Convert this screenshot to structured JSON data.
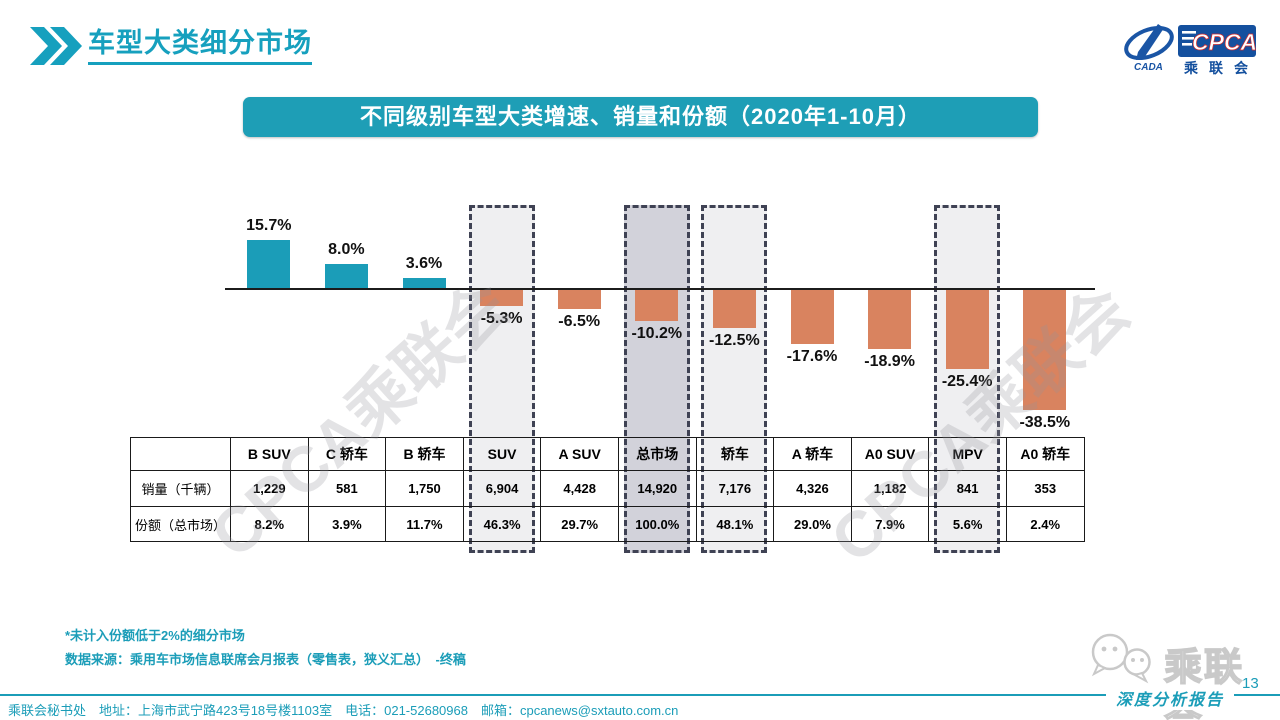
{
  "page": {
    "title": "车型大类细分市场",
    "page_number": "13"
  },
  "logo": {
    "cada_text": "CADA",
    "cpca_text": "CPCA",
    "cn_text": "乘联会"
  },
  "banner": {
    "text": "不同级别车型大类增速、销量和份额（2020年1-10月）"
  },
  "chart_data": {
    "type": "bar",
    "title": "不同级别车型大类增速、销量和份额（2020年1-10月）",
    "categories": [
      "B SUV",
      "C 轿车",
      "B 轿车",
      "SUV",
      "A SUV",
      "总市场",
      "轿车",
      "A 轿车",
      "A0 SUV",
      "MPV",
      "A0 轿车"
    ],
    "growth_pct": [
      15.7,
      8.0,
      3.6,
      -5.3,
      -6.5,
      -10.2,
      -12.5,
      -17.6,
      -18.9,
      -25.4,
      -38.5
    ],
    "growth_labels": [
      "15.7%",
      "8.0%",
      "3.6%",
      "-5.3%",
      "-6.5%",
      "-10.2%",
      "-12.5%",
      "-17.6%",
      "-18.9%",
      "-25.4%",
      "-38.5%"
    ],
    "table_rows": [
      {
        "label": "销量（千辆）",
        "values": [
          "1,229",
          "581",
          "1,750",
          "6,904",
          "4,428",
          "14,920",
          "7,176",
          "4,326",
          "1,182",
          "841",
          "353"
        ]
      },
      {
        "label": "份额（总市场）",
        "values": [
          "8.2%",
          "3.9%",
          "11.7%",
          "46.3%",
          "29.7%",
          "100.0%",
          "48.1%",
          "29.0%",
          "7.9%",
          "5.6%",
          "2.4%"
        ]
      }
    ],
    "highlighted_categories": [
      "SUV",
      "总市场",
      "轿车",
      "MPV"
    ],
    "emphasis_category": "总市场",
    "baseline": 0,
    "grid": false,
    "legend": false,
    "colors": {
      "positive": "#1b9db8",
      "negative": "#d9835f",
      "highlight_fill": "#efeff1",
      "emphasis_fill": "#d2d2da",
      "highlight_border": "#3f4254"
    }
  },
  "watermark": {
    "text": "CPCA乘联会"
  },
  "notes": {
    "line1": "*未计入份额低于2%的细分市场",
    "line2": "数据来源：乘用车市场信息联席会月报表（零售表，狭义汇总）　-终稿"
  },
  "footer": {
    "contact": "乘联会秘书处　地址：上海市武宁路423号18号楼1103室　电话：021-52680968　邮箱：cpcanews@sxtauto.com.cn",
    "report_label": "深度分析报告",
    "brand_text": "乘联会"
  }
}
